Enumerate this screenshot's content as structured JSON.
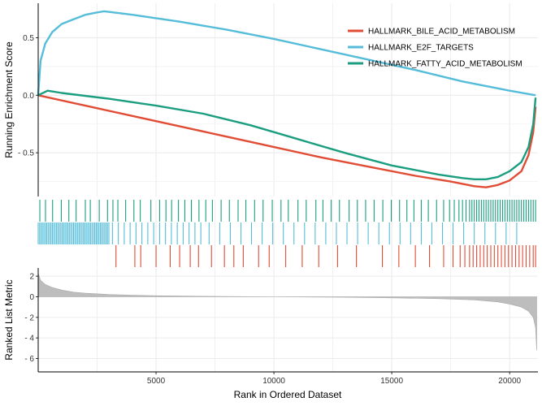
{
  "chart_data": [
    {
      "type": "line",
      "panel": "running-enrichment",
      "ylabel": "Running Enrichment Score",
      "xlim": [
        0,
        21200
      ],
      "ylim": [
        -0.88,
        0.8
      ],
      "yticks": [
        0.5,
        0.0,
        -0.5
      ],
      "ytick_labels": [
        "0.5",
        "0.0",
        "- 0.5"
      ],
      "legend_position": "top-right",
      "grid": true,
      "series": [
        {
          "name": "HALLMARK_BILE_ACID_METABOLISM",
          "color": "#e14c35",
          "x": [
            0,
            2000,
            4000,
            6000,
            8000,
            10000,
            12000,
            14000,
            16000,
            17500,
            18500,
            19000,
            19500,
            20000,
            20500,
            20800,
            21000,
            21100
          ],
          "y": [
            0.0,
            -0.09,
            -0.18,
            -0.27,
            -0.36,
            -0.45,
            -0.54,
            -0.62,
            -0.7,
            -0.75,
            -0.79,
            -0.8,
            -0.78,
            -0.74,
            -0.66,
            -0.52,
            -0.32,
            -0.1
          ]
        },
        {
          "name": "HALLMARK_E2F_TARGETS",
          "color": "#55bdd9",
          "x": [
            0,
            100,
            300,
            600,
            1000,
            1500,
            2000,
            2500,
            2800,
            3200,
            4000,
            5000,
            6000,
            8000,
            10000,
            12000,
            14000,
            16000,
            18000,
            20000,
            21100
          ],
          "y": [
            0.0,
            0.3,
            0.45,
            0.55,
            0.62,
            0.66,
            0.7,
            0.72,
            0.73,
            0.72,
            0.7,
            0.67,
            0.64,
            0.57,
            0.49,
            0.4,
            0.31,
            0.22,
            0.12,
            0.04,
            0.0
          ]
        },
        {
          "name": "HALLMARK_FATTY_ACID_METABOLISM",
          "color": "#1b9e80",
          "x": [
            0,
            400,
            1000,
            3000,
            5000,
            7000,
            9000,
            11000,
            13000,
            15000,
            17000,
            18000,
            18500,
            19000,
            19500,
            20000,
            20500,
            20800,
            21000,
            21100
          ],
          "y": [
            0.0,
            0.04,
            0.02,
            -0.03,
            -0.09,
            -0.16,
            -0.26,
            -0.38,
            -0.5,
            -0.61,
            -0.69,
            -0.72,
            -0.73,
            -0.73,
            -0.71,
            -0.66,
            -0.58,
            -0.45,
            -0.25,
            -0.02
          ]
        }
      ]
    },
    {
      "type": "rug",
      "panel": "gene-hit-positions",
      "xlim": [
        0,
        21200
      ],
      "rows": [
        {
          "name": "HALLMARK_FATTY_ACID_METABOLISM",
          "color": "#1b9e80",
          "hits": [
            70,
            310,
            610,
            980,
            1300,
            1610,
            2000,
            2210,
            2590,
            2940,
            3170,
            3380,
            3710,
            4060,
            4330,
            4780,
            5150,
            5420,
            5660,
            5950,
            6220,
            6500,
            6820,
            7110,
            7390,
            7760,
            8110,
            8480,
            8810,
            9180,
            9540,
            9930,
            10300,
            10610,
            11020,
            11370,
            11780,
            12080,
            12430,
            12780,
            13190,
            13540,
            13890,
            14250,
            14620,
            14980,
            15330,
            15640,
            15940,
            16250,
            16550,
            16900,
            17200,
            17450,
            17650,
            17850,
            18000,
            18150,
            18300,
            18400,
            18500,
            18600,
            18700,
            18800,
            18900,
            19000,
            19100,
            19200,
            19300,
            19400,
            19500,
            19600,
            19700,
            19800,
            19900,
            20000,
            20100,
            20200,
            20300,
            20400,
            20500,
            20600,
            20700,
            20800,
            20900,
            21000,
            21100
          ]
        },
        {
          "name": "HALLMARK_E2F_TARGETS",
          "color": "#55bdd9",
          "hits": [
            0,
            60,
            120,
            180,
            240,
            300,
            360,
            420,
            480,
            540,
            600,
            660,
            720,
            780,
            840,
            900,
            960,
            1020,
            1080,
            1140,
            1200,
            1260,
            1320,
            1380,
            1440,
            1500,
            1560,
            1620,
            1680,
            1740,
            1800,
            1860,
            1920,
            1980,
            2040,
            2100,
            2160,
            2220,
            2280,
            2340,
            2400,
            2460,
            2520,
            2580,
            2640,
            2700,
            2760,
            2820,
            2880,
            2940,
            3000,
            3150,
            3400,
            3650,
            3900,
            4150,
            4400,
            4650,
            4900,
            5150,
            5400,
            5650,
            5900,
            6150,
            6400,
            6650,
            6900,
            7250,
            7700,
            8150,
            8600,
            9050,
            9500,
            9950,
            10400,
            10850,
            11300,
            11750,
            12200,
            12650,
            13100,
            13550,
            14000,
            14450,
            14900,
            15350,
            15800,
            16250,
            16700,
            17150,
            17600,
            18050,
            18500,
            18950,
            19400,
            19850,
            20300
          ]
        },
        {
          "name": "HALLMARK_BILE_ACID_METABOLISM",
          "color": "#e14c35",
          "hits": [
            3300,
            4100,
            4350,
            5000,
            5600,
            6000,
            6450,
            6800,
            7350,
            7900,
            8300,
            8700,
            9350,
            9800,
            10500,
            11200,
            11900,
            12700,
            13500,
            14600,
            15300,
            16000,
            16600,
            17200,
            17600,
            17900,
            18100,
            18300,
            18450,
            18600,
            18750,
            18900,
            19050,
            19200,
            19350,
            19500,
            19650,
            19800,
            19950,
            20100,
            20250,
            20400,
            20550,
            20700,
            20850,
            21000,
            21100
          ]
        }
      ]
    },
    {
      "type": "area",
      "panel": "ranked-list-metric",
      "xlabel": "Rank in Ordered Dataset",
      "ylabel": "Ranked List Metric",
      "xlim": [
        0,
        21200
      ],
      "ylim": [
        -7.3,
        2.8
      ],
      "xticks": [
        5000,
        10000,
        15000,
        20000
      ],
      "xtick_labels": [
        "5000",
        "10000",
        "15000",
        "20000"
      ],
      "yticks": [
        2,
        0,
        -2,
        -4,
        -6
      ],
      "ytick_labels": [
        "2",
        "0",
        "- 2",
        "- 4",
        "- 6"
      ],
      "fill_color": "#bdbdbd",
      "x": [
        0,
        100,
        300,
        600,
        1000,
        1500,
        2000,
        3000,
        4000,
        5000,
        7000,
        10000,
        13000,
        15000,
        17000,
        18500,
        19500,
        20000,
        20500,
        20800,
        21000,
        21100,
        21150
      ],
      "y": [
        2.3,
        1.6,
        1.2,
        0.9,
        0.65,
        0.45,
        0.35,
        0.22,
        0.15,
        0.1,
        0.05,
        0.0,
        -0.05,
        -0.1,
        -0.18,
        -0.3,
        -0.5,
        -0.7,
        -1.0,
        -1.4,
        -2.0,
        -3.0,
        -5.2
      ]
    }
  ]
}
